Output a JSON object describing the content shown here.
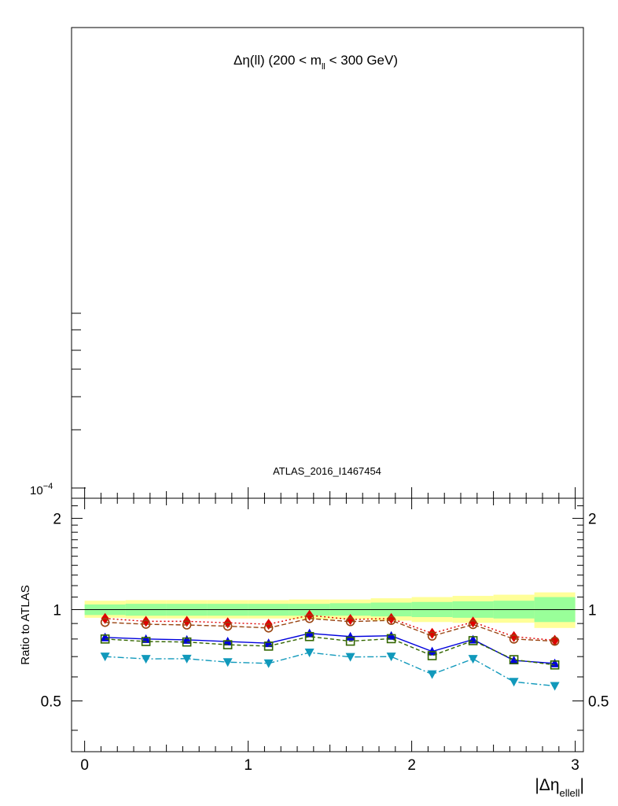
{
  "chart_data": [
    {
      "type": "line",
      "title": "Δη(ll) (200 < m",
      "title_sub": "ll",
      "title_tail": " < 300 GeV)",
      "analysis_label": "ATLAS_2016_I1467454",
      "yscale": "log",
      "yticks": [
        {
          "value": 0.0001,
          "label": "10",
          "exp": "−4"
        }
      ],
      "series": []
    },
    {
      "type": "line",
      "ylabel": "Ratio to ATLAS",
      "xlabel": "|Δη",
      "xlabel_sub": "ellell",
      "xlabel_tail": "|",
      "xlim": [
        -0.08,
        3.05
      ],
      "ylim": [
        0.34,
        2.33
      ],
      "yscale": "log",
      "xticks": [
        {
          "value": 0,
          "label": "0"
        },
        {
          "value": 1,
          "label": "1"
        },
        {
          "value": 2,
          "label": "2"
        },
        {
          "value": 3,
          "label": "3"
        }
      ],
      "yticks": [
        {
          "value": 0.5,
          "label": "0.5"
        },
        {
          "value": 1,
          "label": "1"
        },
        {
          "value": 2,
          "label": "2"
        }
      ],
      "reference_line": 1,
      "x": [
        0.125,
        0.375,
        0.625,
        0.875,
        1.125,
        1.375,
        1.625,
        1.875,
        2.125,
        2.375,
        2.625,
        2.875
      ],
      "bins": [
        0.0,
        0.25,
        0.5,
        0.75,
        1.0,
        1.25,
        1.5,
        1.75,
        2.0,
        2.25,
        2.5,
        2.75,
        3.0
      ],
      "bands": [
        {
          "color": "#ffff99",
          "lo": [
            0.94,
            0.935,
            0.935,
            0.935,
            0.935,
            0.93,
            0.93,
            0.92,
            0.91,
            0.905,
            0.905,
            0.87
          ],
          "hi": [
            1.07,
            1.075,
            1.075,
            1.075,
            1.075,
            1.08,
            1.08,
            1.09,
            1.1,
            1.11,
            1.12,
            1.14
          ]
        },
        {
          "color": "#99ff99",
          "lo": [
            0.96,
            0.955,
            0.955,
            0.955,
            0.955,
            0.955,
            0.955,
            0.95,
            0.945,
            0.94,
            0.935,
            0.91
          ],
          "hi": [
            1.04,
            1.045,
            1.045,
            1.045,
            1.045,
            1.045,
            1.05,
            1.055,
            1.06,
            1.065,
            1.07,
            1.1
          ]
        }
      ],
      "series": [
        {
          "color": "#e00000",
          "dash": "2,3",
          "marker": "diamond",
          "values": [
            0.935,
            0.915,
            0.915,
            0.905,
            0.895,
            0.958,
            0.928,
            0.935,
            0.835,
            0.91,
            0.815,
            0.792
          ]
        },
        {
          "color": "#994411",
          "dash": "6,3",
          "marker": "circle-open",
          "values": [
            0.908,
            0.895,
            0.89,
            0.882,
            0.87,
            0.935,
            0.913,
            0.922,
            0.818,
            0.893,
            0.8,
            0.787
          ]
        },
        {
          "color": "#0000dd",
          "dash": "",
          "marker": "triangle-up",
          "values": [
            0.81,
            0.8,
            0.795,
            0.785,
            0.775,
            0.835,
            0.815,
            0.82,
            0.728,
            0.797,
            0.68,
            0.665
          ]
        },
        {
          "color": "#336600",
          "dash": "5,3",
          "marker": "square-open",
          "values": [
            0.8,
            0.785,
            0.782,
            0.766,
            0.758,
            0.815,
            0.787,
            0.802,
            0.705,
            0.79,
            0.684,
            0.657
          ]
        },
        {
          "color": "#1199bb",
          "dash": "8,3,2,3",
          "marker": "triangle-down",
          "values": [
            0.7,
            0.688,
            0.689,
            0.671,
            0.665,
            0.722,
            0.698,
            0.7,
            0.612,
            0.688,
            0.578,
            0.56
          ]
        }
      ]
    }
  ]
}
